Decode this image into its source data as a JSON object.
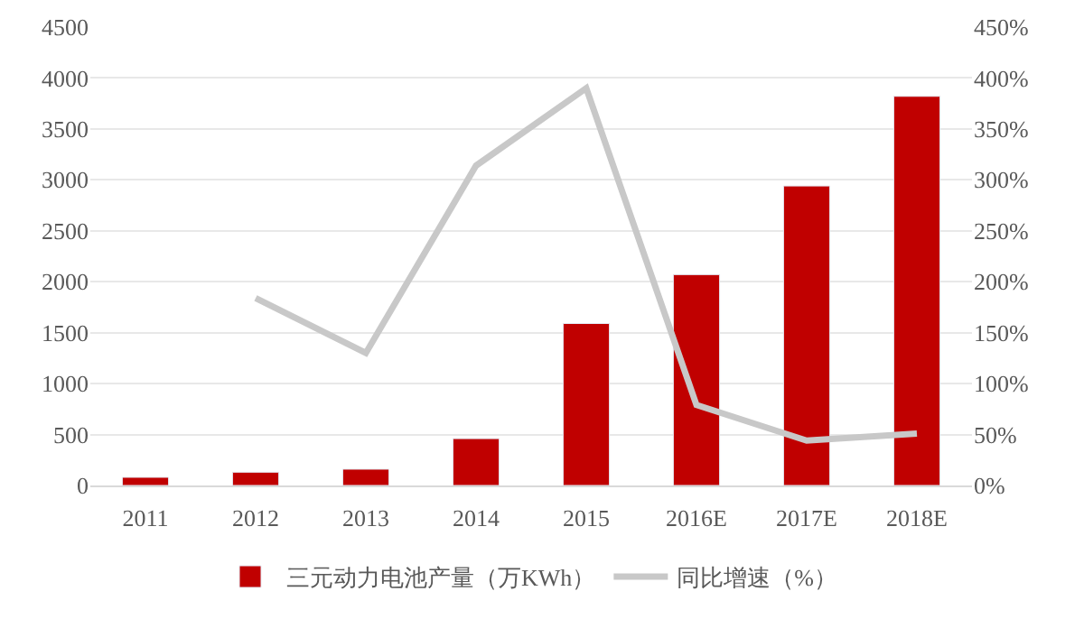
{
  "chart_data": {
    "type": "bar",
    "categories": [
      "2011",
      "2012",
      "2013",
      "2014",
      "2015",
      "2016E",
      "2017E",
      "2018E"
    ],
    "series": [
      {
        "name": "三元动力电池产量（万KWh）",
        "color": "#c00000",
        "values": [
          80,
          130,
          160,
          460,
          1590,
          2070,
          2940,
          3820
        ]
      },
      {
        "name": "同比增速（%）",
        "type": "line",
        "axis": "y2",
        "color": "#c8c8c8",
        "values": [
          null,
          184,
          130,
          314,
          390,
          79,
          44,
          51
        ]
      }
    ],
    "ylim": [
      0,
      4500
    ],
    "yticks": [
      0,
      500,
      1000,
      1500,
      2000,
      2500,
      3000,
      3500,
      4000,
      4500
    ],
    "y2lim": [
      0,
      450
    ],
    "y2ticks": [
      {
        "value": 0,
        "label": "0%"
      },
      {
        "value": 50,
        "label": "50%"
      },
      {
        "value": 100,
        "label": "100%"
      },
      {
        "value": 150,
        "label": "150%"
      },
      {
        "value": 200,
        "label": "200%"
      },
      {
        "value": 250,
        "label": "250%"
      },
      {
        "value": 300,
        "label": "300%"
      },
      {
        "value": 350,
        "label": "350%"
      },
      {
        "value": 400,
        "label": "400%"
      },
      {
        "value": 450,
        "label": "450%"
      }
    ],
    "grid": "y",
    "legend": "bottom",
    "marker": "none",
    "line_style": "solid"
  }
}
